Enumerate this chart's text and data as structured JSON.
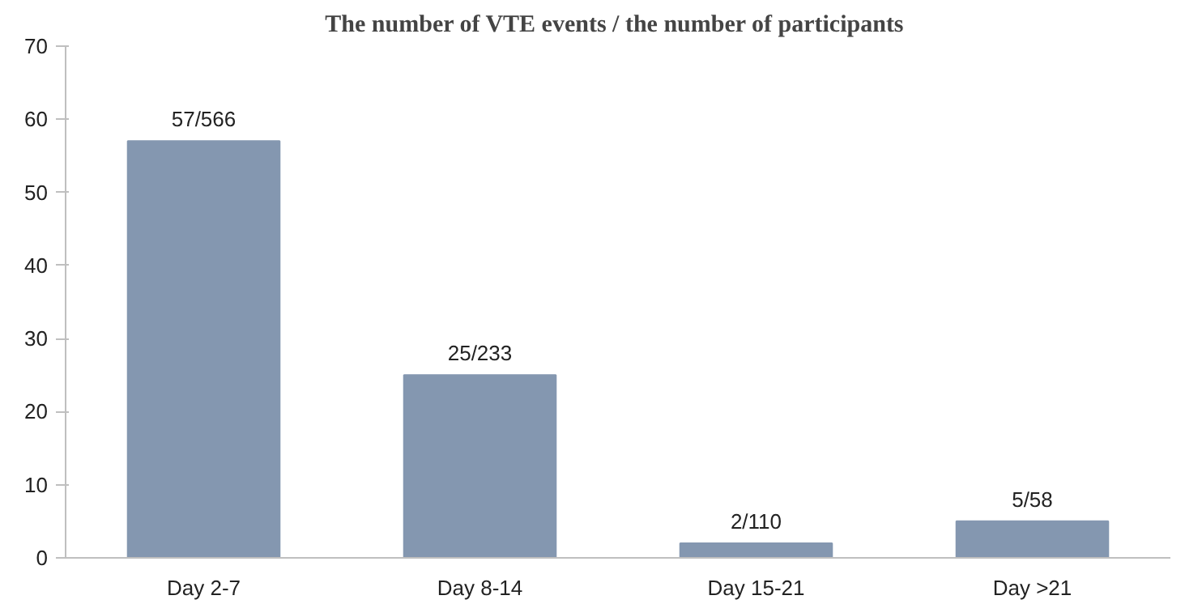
{
  "chart_data": {
    "type": "bar",
    "title": "The  number of VTE events / the number of participants",
    "categories": [
      "Day 2-7",
      "Day 8-14",
      "Day 15-21",
      "Day >21"
    ],
    "values": [
      57,
      25,
      2,
      5
    ],
    "value_labels": [
      "57/566",
      "25/233",
      "2/110",
      "5/58"
    ],
    "color": "#8497b0",
    "ylim": [
      0,
      70
    ],
    "yticks": [
      0,
      10,
      20,
      30,
      40,
      50,
      60,
      70
    ],
    "grid": false
  }
}
